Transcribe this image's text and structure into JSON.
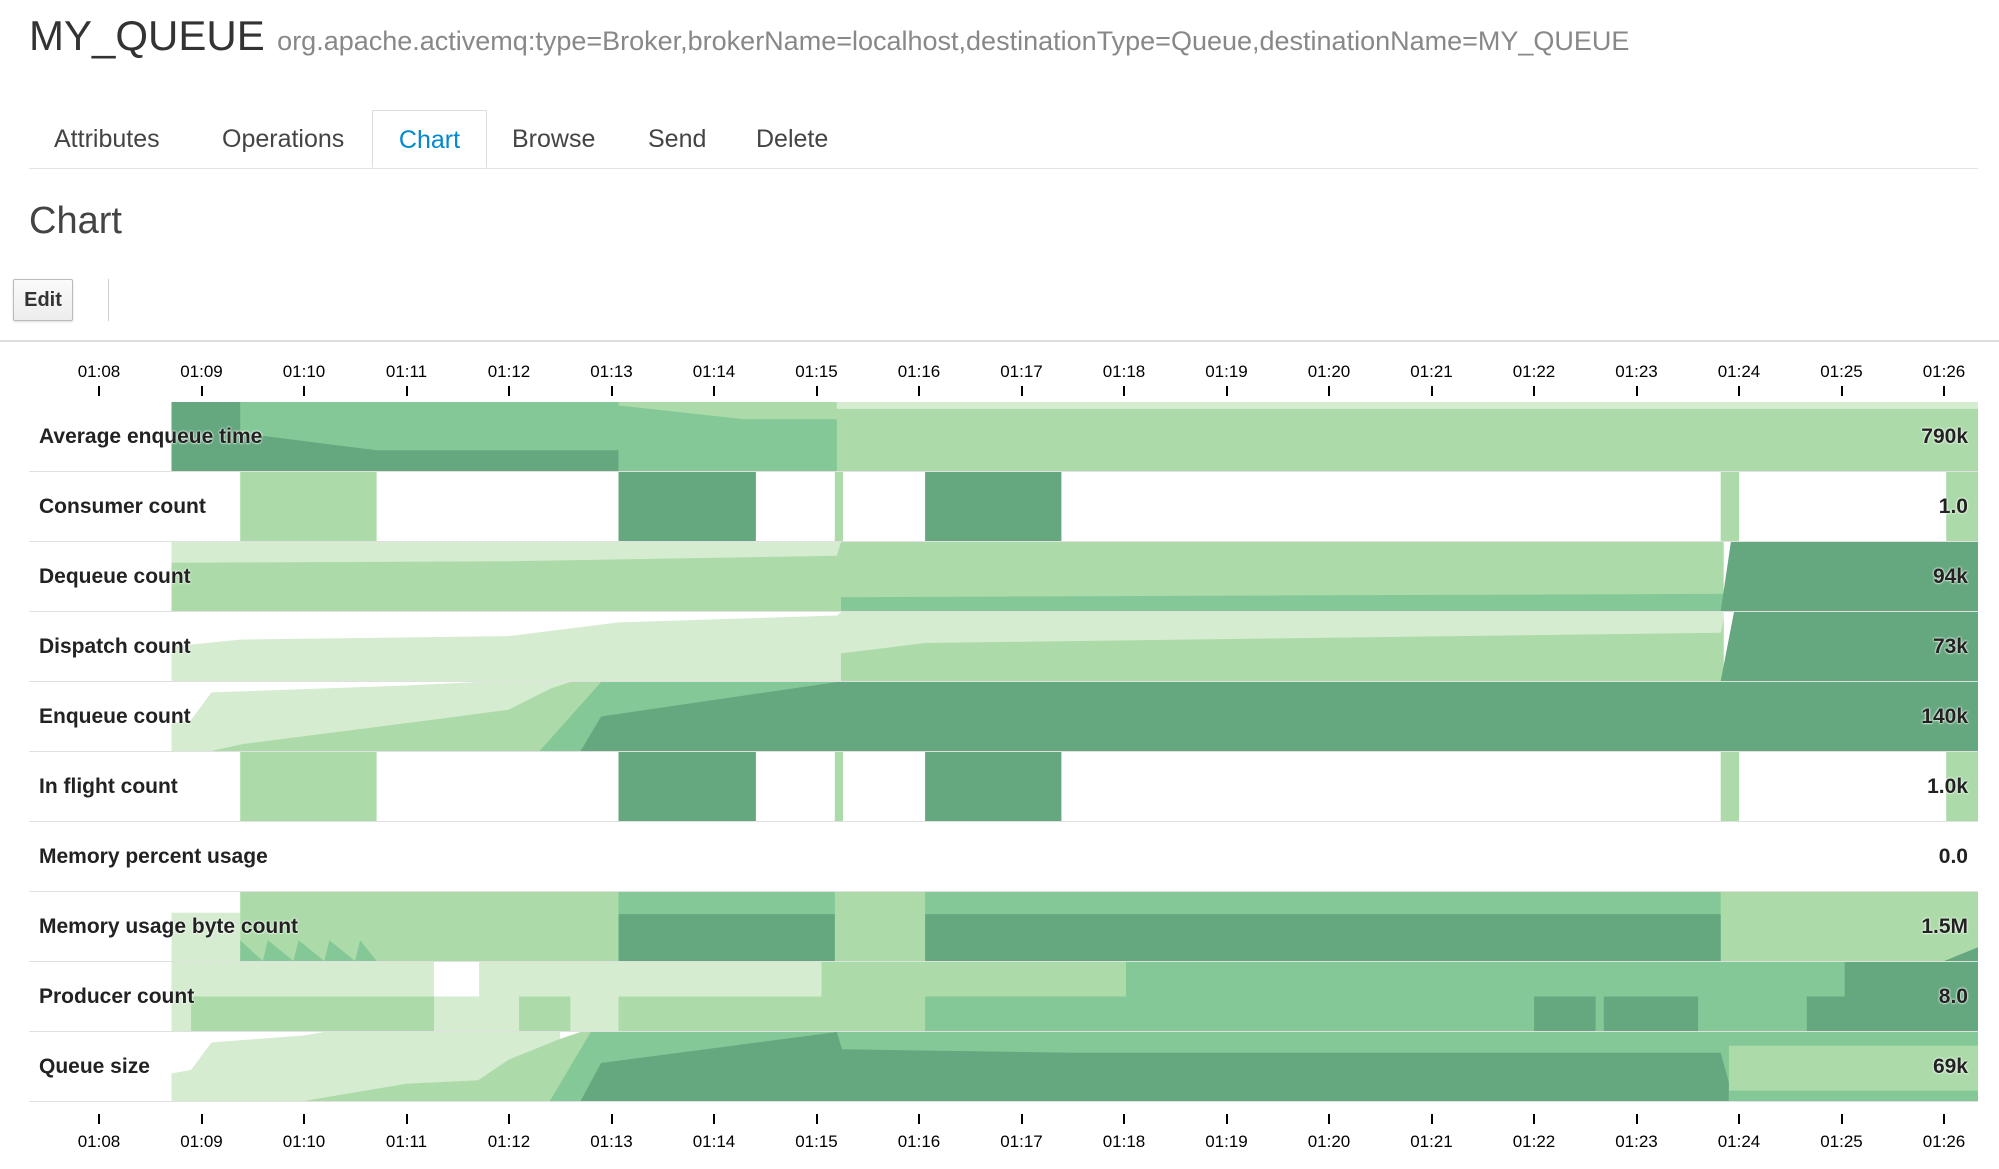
{
  "header": {
    "queue_name": "MY_QUEUE",
    "object_name": "org.apache.activemq:type=Broker,brokerName=localhost,destinationType=Queue,destinationName=MY_QUEUE"
  },
  "tabs": [
    {
      "label": "Attributes",
      "active": false
    },
    {
      "label": "Operations",
      "active": false
    },
    {
      "label": "Chart",
      "active": true
    },
    {
      "label": "Browse",
      "active": false
    },
    {
      "label": "Send",
      "active": false
    },
    {
      "label": "Delete",
      "active": false
    }
  ],
  "section_title": "Chart",
  "toolbar": {
    "edit_label": "Edit"
  },
  "time_axis": [
    "01:08",
    "01:09",
    "01:10",
    "01:11",
    "01:12",
    "01:13",
    "01:14",
    "01:15",
    "01:16",
    "01:17",
    "01:18",
    "01:19",
    "01:20",
    "01:21",
    "01:22",
    "01:23",
    "01:24",
    "01:25",
    "01:26"
  ],
  "colors": {
    "band1": "#d5ecd0",
    "band2": "#acdba9",
    "band3": "#84c897",
    "band4": "#65a87f",
    "active_tab": "#0088ce"
  },
  "metrics": [
    {
      "label": "Average enqueue time",
      "value": "790k"
    },
    {
      "label": "Consumer count",
      "value": "1.0"
    },
    {
      "label": "Dequeue count",
      "value": "94k"
    },
    {
      "label": "Dispatch count",
      "value": "73k"
    },
    {
      "label": "Enqueue count",
      "value": "140k"
    },
    {
      "label": "In flight count",
      "value": "1.0k"
    },
    {
      "label": "Memory percent usage",
      "value": "0.0"
    },
    {
      "label": "Memory usage byte count",
      "value": "1.5M"
    },
    {
      "label": "Producer count",
      "value": "8.0"
    },
    {
      "label": "Queue size",
      "value": "69k"
    }
  ]
}
